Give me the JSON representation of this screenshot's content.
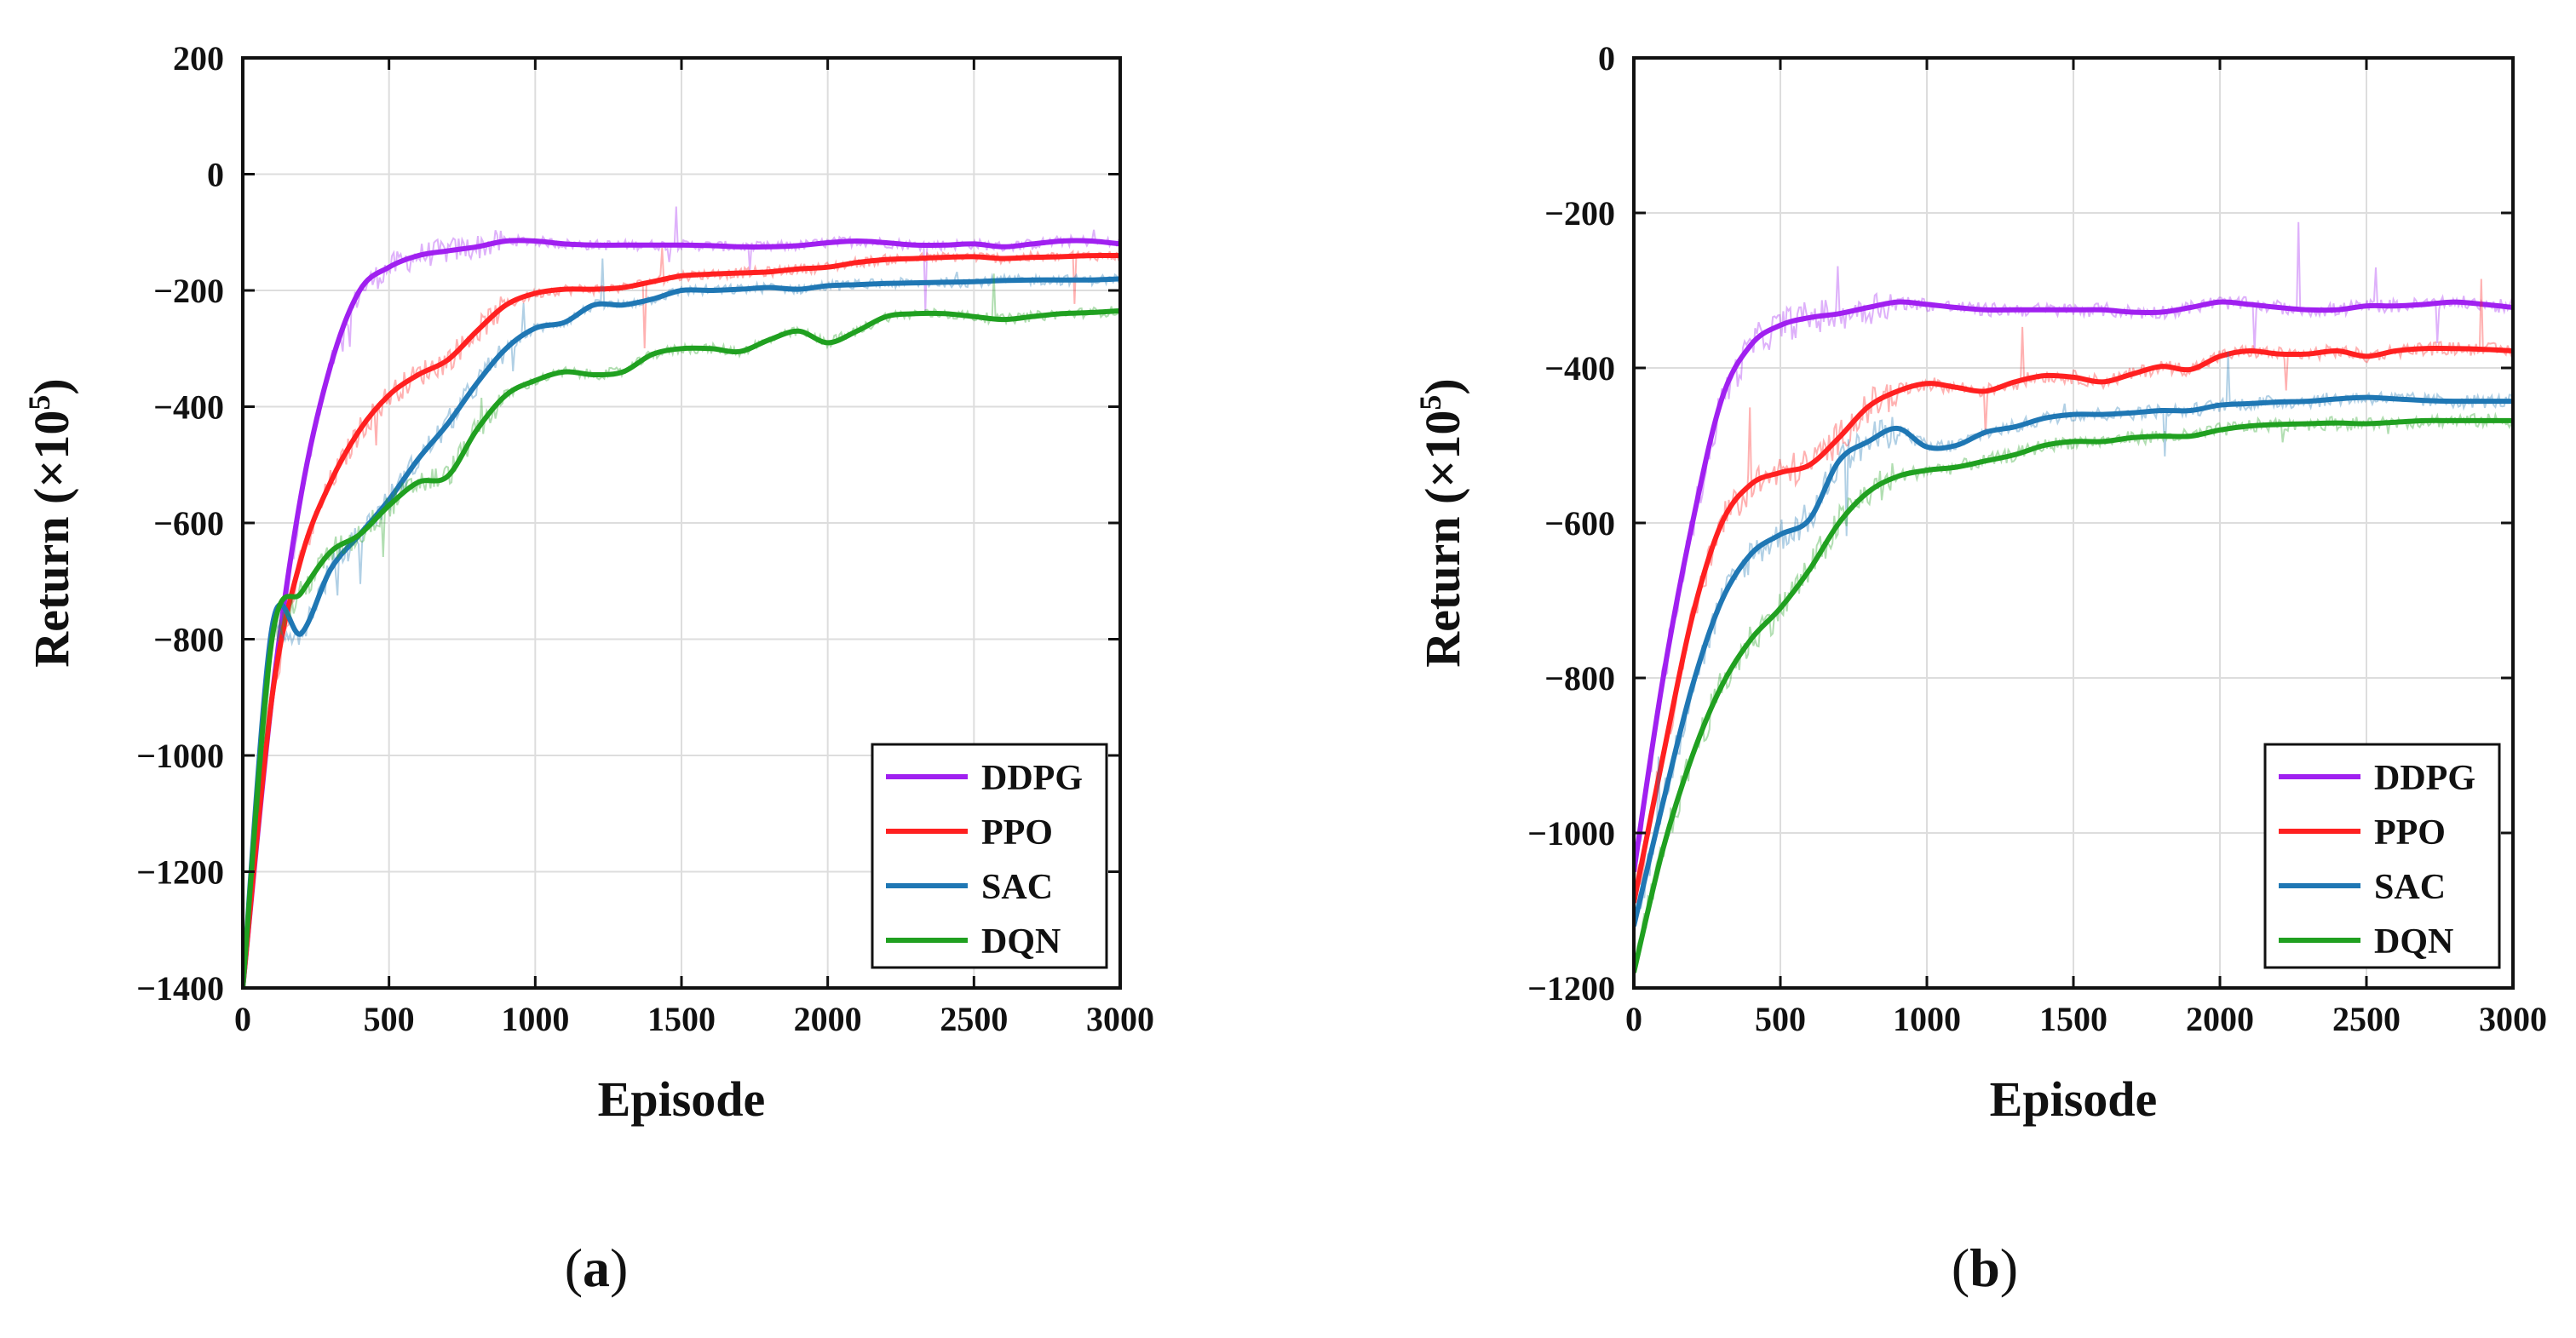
{
  "chart_data": [
    {
      "type": "line",
      "panel_label": "a",
      "xlabel": "Episode",
      "ylabel": "Return (×10",
      "ylabel_exponent": "5",
      "ylabel_suffix": ")",
      "xlim": [
        0,
        3000
      ],
      "ylim": [
        -1400,
        200
      ],
      "xticks": [
        0,
        500,
        1000,
        1500,
        2000,
        2500,
        3000
      ],
      "yticks": [
        200,
        0,
        -200,
        -400,
        -600,
        -800,
        -1000,
        -1200,
        -1400
      ],
      "xtick_labels": [
        "0",
        "500",
        "1000",
        "1500",
        "2000",
        "2500",
        "3000"
      ],
      "ytick_labels": [
        "200",
        "0",
        "−200",
        "−400",
        "−600",
        "−800",
        "−1000",
        "−1200",
        "−1400"
      ],
      "grid": true,
      "legend_position": "bottom-right",
      "series": [
        {
          "name": "DDPG",
          "color": "#a020f0",
          "x": [
            0,
            100,
            200,
            300,
            400,
            500,
            600,
            700,
            800,
            900,
            1000,
            1100,
            1200,
            1300,
            1400,
            1500,
            1600,
            1700,
            1800,
            1900,
            2000,
            2100,
            2200,
            2300,
            2400,
            2500,
            2600,
            2700,
            2800,
            2900,
            3000
          ],
          "y": [
            -1400,
            -900,
            -550,
            -330,
            -200,
            -160,
            -140,
            -132,
            -125,
            -115,
            -115,
            -120,
            -122,
            -122,
            -122,
            -122,
            -123,
            -125,
            -125,
            -123,
            -118,
            -115,
            -118,
            -122,
            -122,
            -120,
            -125,
            -120,
            -115,
            -115,
            -120
          ]
        },
        {
          "name": "PPO",
          "color": "#ff2020",
          "x": [
            0,
            100,
            200,
            300,
            400,
            500,
            600,
            700,
            800,
            900,
            1000,
            1100,
            1200,
            1300,
            1400,
            1500,
            1600,
            1700,
            1800,
            1900,
            2000,
            2100,
            2200,
            2300,
            2400,
            2500,
            2600,
            2700,
            2800,
            2900,
            3000
          ],
          "y": [
            -1400,
            -900,
            -660,
            -530,
            -440,
            -380,
            -345,
            -320,
            -270,
            -225,
            -205,
            -198,
            -198,
            -195,
            -185,
            -175,
            -172,
            -170,
            -168,
            -163,
            -160,
            -152,
            -147,
            -145,
            -143,
            -142,
            -145,
            -143,
            -142,
            -140,
            -140
          ]
        },
        {
          "name": "SAC",
          "color": "#1f77b4",
          "x": [
            0,
            100,
            200,
            300,
            400,
            500,
            600,
            700,
            800,
            900,
            1000,
            1100,
            1200,
            1300,
            1400,
            1500,
            1600,
            1700,
            1800,
            1900,
            2000,
            2100,
            2200,
            2300,
            2400,
            2500,
            2600,
            2700,
            2800,
            2900,
            3000
          ],
          "y": [
            -1400,
            -780,
            -790,
            -680,
            -620,
            -560,
            -490,
            -430,
            -360,
            -300,
            -265,
            -255,
            -225,
            -225,
            -215,
            -200,
            -200,
            -198,
            -195,
            -198,
            -192,
            -190,
            -188,
            -187,
            -186,
            -185,
            -183,
            -182,
            -182,
            -182,
            -180
          ]
        },
        {
          "name": "DQN",
          "color": "#20a020",
          "x": [
            0,
            100,
            200,
            300,
            400,
            500,
            600,
            700,
            800,
            900,
            1000,
            1100,
            1200,
            1300,
            1400,
            1500,
            1600,
            1700,
            1800,
            1900,
            2000,
            2100,
            2200,
            2300,
            2400,
            2500,
            2600,
            2700,
            2800,
            2900,
            3000
          ],
          "y": [
            -1400,
            -800,
            -720,
            -650,
            -620,
            -570,
            -530,
            -520,
            -440,
            -380,
            -355,
            -340,
            -345,
            -340,
            -310,
            -300,
            -300,
            -305,
            -285,
            -270,
            -290,
            -270,
            -245,
            -240,
            -240,
            -245,
            -250,
            -245,
            -240,
            -238,
            -235
          ]
        }
      ]
    },
    {
      "type": "line",
      "panel_label": "b",
      "xlabel": "Episode",
      "ylabel": "Return (×10",
      "ylabel_exponent": "5",
      "ylabel_suffix": ")",
      "xlim": [
        0,
        3000
      ],
      "ylim": [
        -1200,
        0
      ],
      "xticks": [
        0,
        500,
        1000,
        1500,
        2000,
        2500,
        3000
      ],
      "yticks": [
        0,
        -200,
        -400,
        -600,
        -800,
        -1000,
        -1200
      ],
      "xtick_labels": [
        "0",
        "500",
        "1000",
        "1500",
        "2000",
        "2500",
        "3000"
      ],
      "ytick_labels": [
        "0",
        "−200",
        "−400",
        "−600",
        "−800",
        "−1000",
        "−1200"
      ],
      "grid": true,
      "legend_position": "bottom-right",
      "series": [
        {
          "name": "DDPG",
          "color": "#a020f0",
          "x": [
            0,
            100,
            200,
            300,
            400,
            500,
            600,
            700,
            800,
            900,
            1000,
            1100,
            1200,
            1300,
            1400,
            1500,
            1600,
            1700,
            1800,
            1900,
            2000,
            2100,
            2200,
            2300,
            2400,
            2500,
            2600,
            2700,
            2800,
            2900,
            3000
          ],
          "y": [
            -1050,
            -800,
            -600,
            -440,
            -370,
            -345,
            -335,
            -330,
            -322,
            -315,
            -318,
            -322,
            -325,
            -325,
            -325,
            -325,
            -325,
            -328,
            -328,
            -322,
            -315,
            -318,
            -322,
            -325,
            -325,
            -320,
            -320,
            -318,
            -315,
            -318,
            -322
          ]
        },
        {
          "name": "PPO",
          "color": "#ff2020",
          "x": [
            0,
            100,
            200,
            300,
            400,
            500,
            600,
            700,
            800,
            900,
            1000,
            1100,
            1200,
            1300,
            1400,
            1500,
            1600,
            1700,
            1800,
            1900,
            2000,
            2100,
            2200,
            2300,
            2400,
            2500,
            2600,
            2700,
            2800,
            2900,
            3000
          ],
          "y": [
            -1090,
            -900,
            -720,
            -600,
            -550,
            -535,
            -525,
            -490,
            -450,
            -430,
            -420,
            -425,
            -430,
            -418,
            -410,
            -412,
            -418,
            -408,
            -398,
            -402,
            -385,
            -378,
            -382,
            -382,
            -378,
            -385,
            -378,
            -375,
            -375,
            -376,
            -378
          ]
        },
        {
          "name": "SAC",
          "color": "#1f77b4",
          "x": [
            0,
            100,
            200,
            300,
            400,
            500,
            600,
            700,
            800,
            900,
            1000,
            1100,
            1200,
            1300,
            1400,
            1500,
            1600,
            1700,
            1800,
            1900,
            2000,
            2100,
            2200,
            2300,
            2400,
            2500,
            2600,
            2700,
            2800,
            2900,
            3000
          ],
          "y": [
            -1120,
            -960,
            -810,
            -700,
            -640,
            -615,
            -595,
            -520,
            -495,
            -478,
            -502,
            -500,
            -483,
            -476,
            -465,
            -460,
            -460,
            -458,
            -455,
            -455,
            -448,
            -446,
            -444,
            -443,
            -440,
            -438,
            -440,
            -442,
            -443,
            -443,
            -443
          ]
        },
        {
          "name": "DQN",
          "color": "#20a020",
          "x": [
            0,
            100,
            200,
            300,
            400,
            500,
            600,
            700,
            800,
            900,
            1000,
            1100,
            1200,
            1300,
            1400,
            1500,
            1600,
            1700,
            1800,
            1900,
            2000,
            2100,
            2200,
            2300,
            2400,
            2500,
            2600,
            2700,
            2800,
            2900,
            3000
          ],
          "y": [
            -1180,
            -1020,
            -900,
            -810,
            -750,
            -710,
            -660,
            -600,
            -560,
            -540,
            -532,
            -528,
            -520,
            -512,
            -500,
            -495,
            -495,
            -490,
            -488,
            -488,
            -480,
            -475,
            -473,
            -472,
            -471,
            -472,
            -470,
            -468,
            -468,
            -468,
            -468
          ]
        }
      ]
    }
  ]
}
